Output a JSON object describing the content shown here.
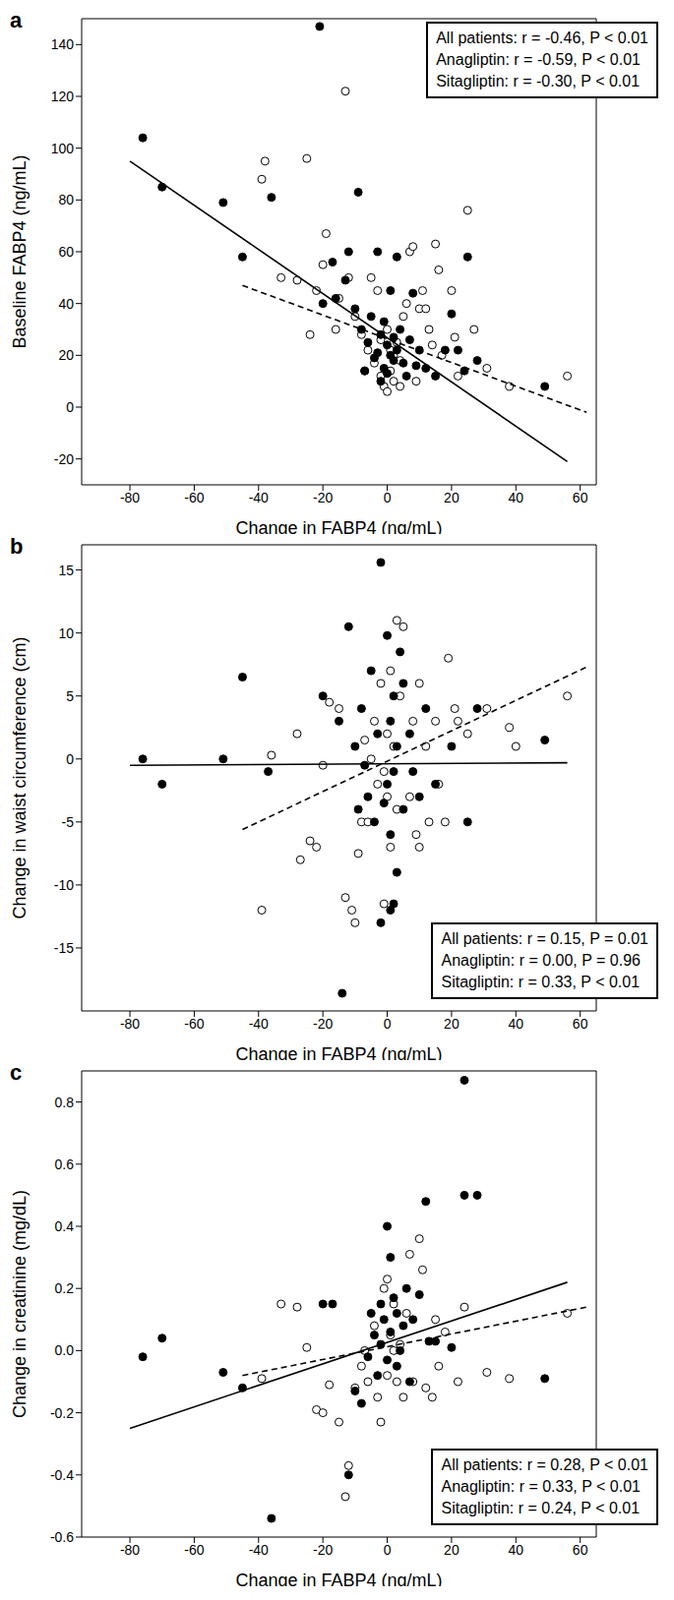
{
  "chart_data": [
    {
      "type": "scatter",
      "panel": "a",
      "x_label": "Change in FABP4 (ng/mL)",
      "y_label": "Baseline FABP4 (ng/mL)",
      "xlim": [
        -95,
        65
      ],
      "xticks": [
        -80,
        -60,
        -40,
        -20,
        0,
        20,
        40,
        60
      ],
      "ylim": [
        -30,
        150
      ],
      "yticks": [
        -20,
        0,
        20,
        40,
        60,
        80,
        100,
        120,
        140
      ],
      "annotations": [
        "All patients: r = -0.46, P < 0.01",
        "Anagliptin: r = -0.59, P < 0.01",
        "Sitagliptin: r = -0.30, P < 0.01"
      ],
      "series": [
        {
          "name": "Sitagliptin",
          "color": "#000000",
          "marker": "open",
          "x": [
            -38,
            -25,
            -13,
            -39,
            -33,
            -28,
            -24,
            -22,
            -20,
            -19,
            -15,
            -12,
            -10,
            -8,
            -6,
            -4,
            -2,
            -1,
            0,
            1,
            2,
            3,
            4,
            5,
            6,
            7,
            8,
            10,
            11,
            12,
            13,
            15,
            16,
            17,
            20,
            21,
            22,
            25,
            27,
            31,
            38,
            56,
            -5,
            -3,
            0,
            2,
            -7,
            9,
            -16,
            14,
            4,
            -2,
            1
          ],
          "values": [
            95,
            96,
            122,
            88,
            50,
            49,
            28,
            45,
            55,
            67,
            42,
            50,
            35,
            28,
            22,
            17,
            12,
            8,
            6,
            14,
            20,
            25,
            18,
            35,
            40,
            60,
            62,
            38,
            45,
            38,
            30,
            63,
            53,
            20,
            45,
            27,
            12,
            76,
            30,
            15,
            8,
            12,
            50,
            45,
            30,
            10,
            14,
            10,
            30,
            24,
            8,
            26,
            22
          ]
        },
        {
          "name": "Anagliptin",
          "color": "#000000",
          "marker": "filled",
          "x": [
            -76,
            -70,
            -51,
            -36,
            -45,
            -21,
            -9,
            -17,
            -12,
            -13,
            -16,
            -20,
            -3,
            -5,
            -2,
            0,
            1,
            2,
            -1,
            3,
            5,
            -4,
            -6,
            -8,
            4,
            8,
            7,
            10,
            6,
            -2,
            0,
            2,
            -3,
            12,
            20,
            25,
            28,
            24,
            49,
            15,
            -10,
            -1,
            1,
            3,
            18,
            9,
            -7,
            22
          ],
          "values": [
            104,
            85,
            79,
            81,
            58,
            147,
            83,
            56,
            60,
            49,
            42,
            40,
            60,
            35,
            28,
            24,
            20,
            18,
            15,
            22,
            17,
            19,
            25,
            30,
            30,
            44,
            26,
            22,
            12,
            10,
            13,
            27,
            21,
            15,
            36,
            58,
            18,
            14,
            8,
            12,
            38,
            33,
            45,
            58,
            22,
            16,
            14,
            22
          ]
        }
      ],
      "fit_lines": [
        {
          "series": "Anagliptin",
          "line_style": "solid",
          "x": [
            -80,
            56
          ],
          "values": [
            95,
            -21
          ]
        },
        {
          "series": "Sitagliptin",
          "line_style": "dashed",
          "x": [
            -45,
            62
          ],
          "values": [
            47,
            -2
          ]
        }
      ]
    },
    {
      "type": "scatter",
      "panel": "b",
      "x_label": "Change in FABP4 (ng/mL)",
      "y_label": "Change in waist circumference (cm)",
      "xlim": [
        -95,
        65
      ],
      "xticks": [
        -80,
        -60,
        -40,
        -20,
        0,
        20,
        40,
        60
      ],
      "ylim": [
        -20,
        17
      ],
      "yticks": [
        -15,
        -10,
        -5,
        0,
        5,
        10,
        15
      ],
      "annotations": [
        "All patients: r = 0.15, P = 0.01",
        "Anagliptin: r = 0.00, P = 0.96",
        "Sitagliptin: r = 0.33, P < 0.01"
      ],
      "series": [
        {
          "name": "Sitagliptin",
          "color": "#000000",
          "marker": "open",
          "x": [
            -39,
            -36,
            -28,
            -27,
            -24,
            -22,
            -20,
            -18,
            -15,
            -13,
            -11,
            -10,
            -9,
            -8,
            -6,
            -5,
            -4,
            -3,
            -2,
            -1,
            0,
            0,
            1,
            1,
            2,
            3,
            3,
            4,
            5,
            -1,
            7,
            8,
            9,
            10,
            12,
            13,
            15,
            16,
            18,
            19,
            21,
            22,
            25,
            31,
            38,
            40,
            56,
            10,
            -7
          ],
          "values": [
            -12,
            0.3,
            2,
            -8,
            -6.5,
            -7,
            -0.5,
            4.5,
            4,
            -11,
            -12,
            -13,
            -7.5,
            -5,
            -5,
            0,
            3,
            -2,
            6,
            -1,
            2,
            -3,
            7,
            -7,
            1,
            11,
            -4,
            5,
            10.5,
            -11.5,
            -3,
            3,
            -6,
            -7,
            1,
            -5,
            3,
            -2,
            -5,
            8,
            4,
            3,
            2,
            4,
            2.5,
            1,
            5,
            6,
            1.5
          ]
        },
        {
          "name": "Anagliptin",
          "color": "#000000",
          "marker": "filled",
          "x": [
            -76,
            -70,
            -51,
            -45,
            -37,
            -20,
            -15,
            -12,
            -10,
            -8,
            -6,
            -5,
            -4,
            -3,
            -2,
            -2,
            -14,
            0,
            0,
            1,
            1,
            2,
            2,
            3,
            3,
            4,
            5,
            1,
            2,
            7,
            8,
            10,
            12,
            15,
            20,
            25,
            28,
            49,
            -7,
            -1,
            5,
            -9
          ],
          "values": [
            0,
            -2,
            0,
            6.5,
            -1,
            5,
            3,
            10.5,
            1,
            4,
            -3,
            7,
            -5,
            2,
            15.6,
            -13,
            -18.6,
            9.8,
            -2,
            3,
            -6,
            -1,
            5,
            -9,
            1,
            8.5,
            -4,
            -12,
            -11.5,
            2,
            -1,
            -3,
            4,
            -2,
            1,
            -5,
            4,
            1.5,
            -0.5,
            -3.5,
            6,
            -4
          ]
        }
      ],
      "fit_lines": [
        {
          "series": "Anagliptin",
          "line_style": "solid",
          "x": [
            -80,
            56
          ],
          "values": [
            -0.5,
            -0.3
          ]
        },
        {
          "series": "Sitagliptin",
          "line_style": "dashed",
          "x": [
            -45,
            62
          ],
          "values": [
            -5.6,
            7.3
          ]
        }
      ]
    },
    {
      "type": "scatter",
      "panel": "c",
      "x_label": "Change in FABP4 (ng/mL)",
      "y_label": "Change in creatinine (mg/dL)",
      "xlim": [
        -95,
        65
      ],
      "xticks": [
        -80,
        -60,
        -40,
        -20,
        0,
        20,
        40,
        60
      ],
      "ylim": [
        -0.6,
        0.9
      ],
      "yticks": [
        -0.6,
        -0.4,
        -0.2,
        {
          "value": 0,
          "label": "0.0"
        },
        0.2,
        0.4,
        0.6,
        0.8
      ],
      "annotations": [
        "All patients: r = 0.28, P < 0.01",
        "Anagliptin: r = 0.33, P < 0.01",
        "Sitagliptin: r = 0.24, P < 0.01"
      ],
      "series": [
        {
          "name": "Sitagliptin",
          "color": "#000000",
          "marker": "open",
          "x": [
            -39,
            -33,
            -28,
            -25,
            -22,
            -20,
            -18,
            -15,
            -13,
            -12,
            -10,
            -8,
            -6,
            -4,
            -3,
            -2,
            -1,
            0,
            0,
            1,
            2,
            3,
            4,
            5,
            6,
            7,
            8,
            10,
            11,
            12,
            14,
            15,
            16,
            18,
            22,
            24,
            31,
            38,
            56,
            -7,
            2
          ],
          "values": [
            -0.09,
            0.15,
            0.14,
            0.01,
            -0.19,
            -0.2,
            -0.11,
            -0.23,
            -0.47,
            -0.37,
            -0.12,
            -0.05,
            -0.1,
            0.08,
            -0.15,
            -0.23,
            0.2,
            0.23,
            -0.08,
            0.05,
            0.15,
            -0.1,
            0.02,
            -0.15,
            0.12,
            0.31,
            -0.1,
            0.36,
            0.26,
            -0.12,
            -0.15,
            0.1,
            -0.05,
            0.06,
            -0.1,
            0.14,
            -0.07,
            -0.09,
            0.12,
            0.0,
            0.0
          ]
        },
        {
          "name": "Anagliptin",
          "color": "#000000",
          "marker": "filled",
          "x": [
            -76,
            -70,
            -51,
            -45,
            -36,
            -20,
            -17,
            -12,
            -10,
            -8,
            -5,
            -4,
            -3,
            -2,
            -1,
            0,
            0,
            1,
            1,
            2,
            3,
            3,
            4,
            5,
            6,
            8,
            10,
            12,
            13,
            15,
            20,
            24,
            24,
            28,
            49,
            -6,
            -2,
            7
          ],
          "values": [
            -0.02,
            0.04,
            -0.07,
            -0.12,
            -0.54,
            0.15,
            0.15,
            -0.4,
            -0.13,
            -0.17,
            0.12,
            0.05,
            -0.08,
            0.02,
            0.1,
            0.4,
            -0.03,
            0.3,
            0.06,
            0.17,
            -0.05,
            0.12,
            0.0,
            0.08,
            0.2,
            0.1,
            0.18,
            0.48,
            0.03,
            0.03,
            0.01,
            0.87,
            0.5,
            0.5,
            -0.09,
            -0.02,
            0.15,
            -0.1
          ]
        }
      ],
      "fit_lines": [
        {
          "series": "Anagliptin",
          "line_style": "solid",
          "x": [
            -80,
            56
          ],
          "values": [
            -0.25,
            0.22
          ]
        },
        {
          "series": "Sitagliptin",
          "line_style": "dashed",
          "x": [
            -45,
            62
          ],
          "values": [
            -0.08,
            0.14
          ]
        }
      ]
    }
  ]
}
